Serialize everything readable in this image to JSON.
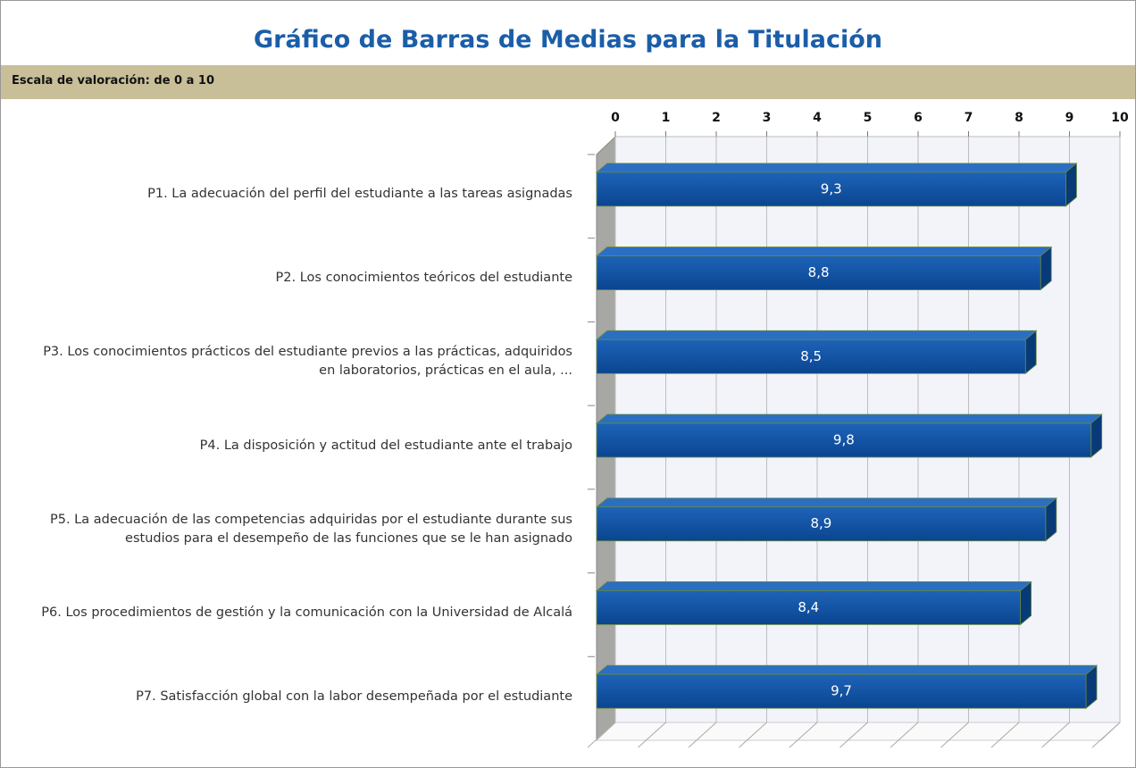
{
  "chart_data": {
    "type": "bar",
    "orientation": "horizontal",
    "title": "Gráfico de Barras de Medias para la Titulación",
    "subtitle": "Escala de valoración: de 0 a 10",
    "categories": [
      "P1. La adecuación del perfil del estudiante a las tareas asignadas",
      "P2. Los conocimientos teóricos del estudiante",
      "P3. Los conocimientos prácticos del estudiante previos a las prácticas, adquiridos en laboratorios, prácticas en el aula, ...",
      "P4. La disposición y actitud del estudiante ante el trabajo",
      "P5. La adecuación de las competencias adquiridas por el estudiante durante sus estudios para el desempeño de las funciones que se le han asignado",
      "P6. Los procedimientos de gestión y la comunicación con la Universidad de Alcalá",
      "P7. Satisfacción global con la labor desempeñada por el estudiante"
    ],
    "values": [
      9.3,
      8.8,
      8.5,
      9.8,
      8.9,
      8.4,
      9.7
    ],
    "value_labels": [
      "9,3",
      "8,8",
      "8,5",
      "9,8",
      "8,9",
      "8,4",
      "9,7"
    ],
    "color": "#0d4f9e",
    "xlim": [
      0,
      10
    ],
    "xticks": [
      0,
      1,
      2,
      3,
      4,
      5,
      6,
      7,
      8,
      9,
      10
    ],
    "grid": true
  }
}
